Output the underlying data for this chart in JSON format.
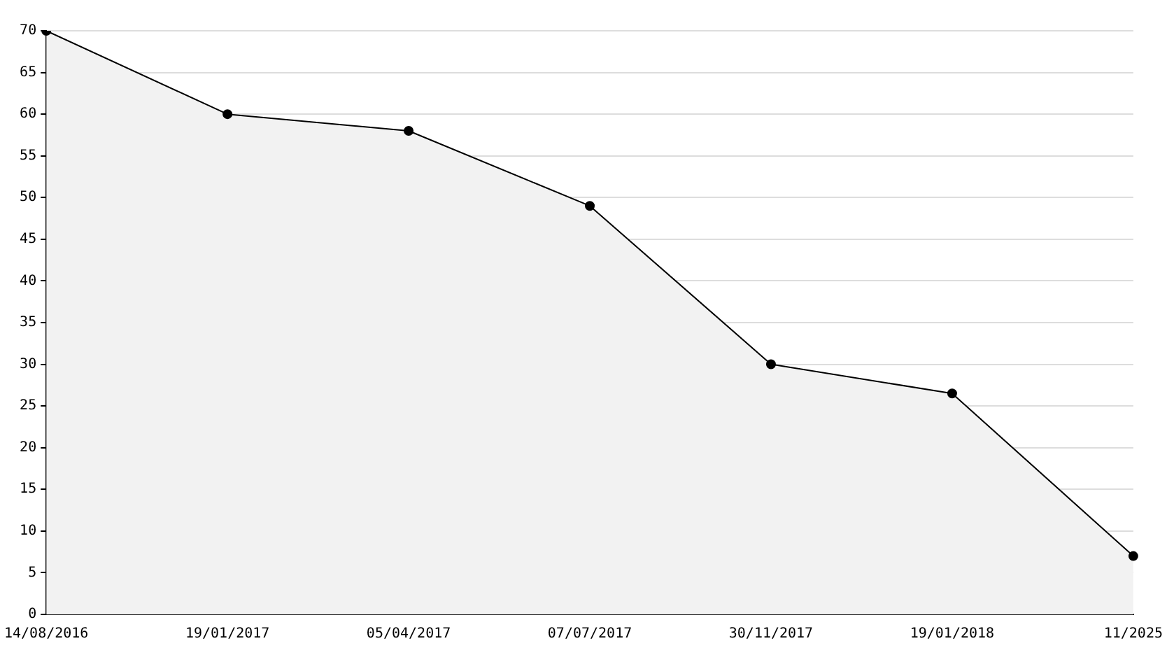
{
  "chart_data": {
    "type": "area",
    "categories": [
      "14/08/2016",
      "19/01/2017",
      "05/04/2017",
      "07/07/2017",
      "30/11/2017",
      "19/01/2018",
      "11/2025"
    ],
    "series": [
      {
        "color": "#000000",
        "values": [
          70,
          60,
          58,
          49,
          30,
          26.5,
          7
        ]
      }
    ],
    "ylim": [
      0,
      70
    ],
    "yticks": [
      0,
      5,
      10,
      15,
      20,
      25,
      30,
      35,
      40,
      45,
      50,
      55,
      60,
      65,
      70
    ],
    "grid": "y",
    "legend": false,
    "marker": "circle",
    "line_style": "solid"
  }
}
